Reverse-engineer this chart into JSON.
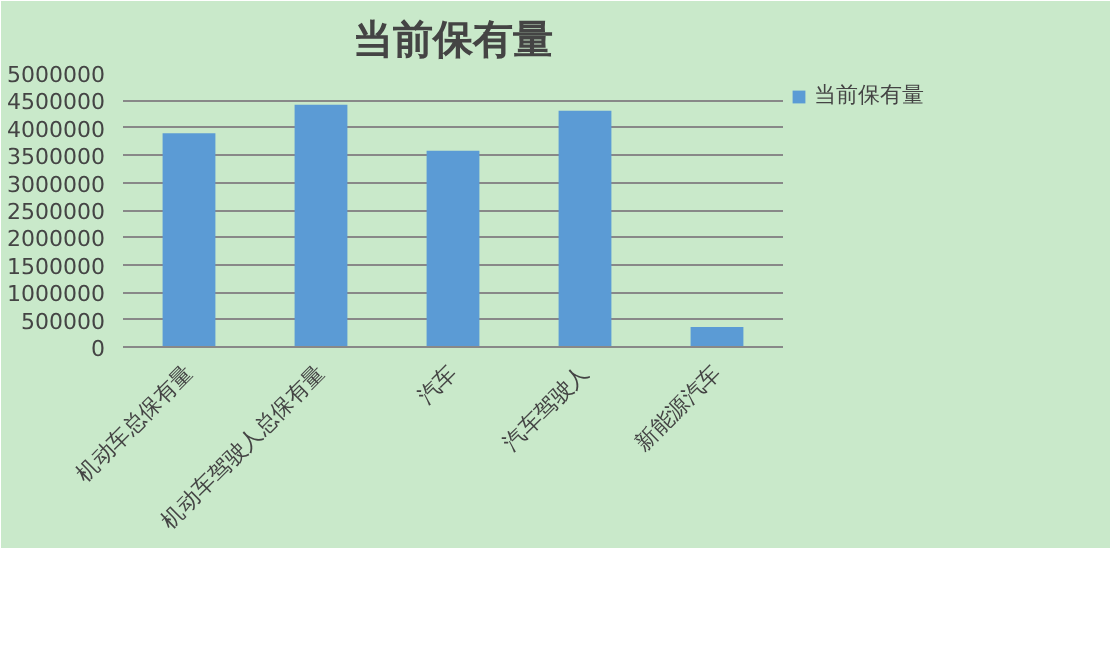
{
  "chart_data": {
    "type": "bar",
    "title": "当前保有量",
    "categories": [
      "机动车总保有量",
      "机动车驾驶人总保有量",
      "汽车",
      "汽车驾驶人",
      "新能源汽车"
    ],
    "series": [
      {
        "name": "当前保有量",
        "color": "#5b9bd5",
        "values": [
          3900000,
          4420000,
          3580000,
          4310000,
          365000
        ]
      }
    ],
    "ylim": [
      0,
      5000000
    ],
    "yticks": [
      0,
      500000,
      1000000,
      1500000,
      2000000,
      2500000,
      3000000,
      3500000,
      4000000,
      4500000,
      5000000
    ],
    "grid": "y",
    "legend": "right"
  }
}
